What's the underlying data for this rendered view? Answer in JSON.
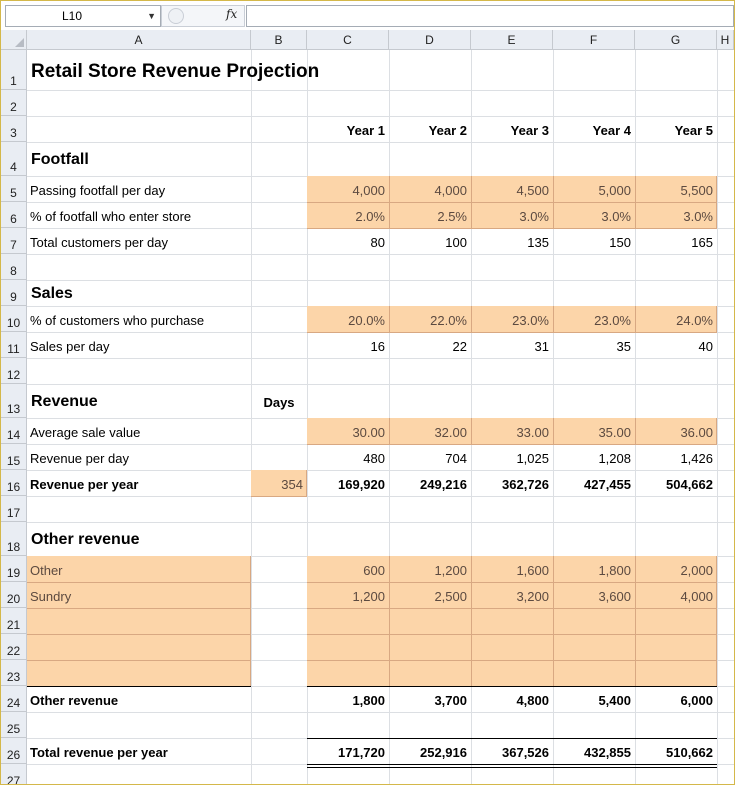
{
  "formula_bar": {
    "name_box": "L10",
    "fx": "fx",
    "formula": ""
  },
  "columns": [
    "A",
    "B",
    "C",
    "D",
    "E",
    "F",
    "G",
    "H"
  ],
  "row_numbers": [
    "1",
    "2",
    "3",
    "4",
    "5",
    "6",
    "7",
    "8",
    "9",
    "10",
    "11",
    "12",
    "13",
    "14",
    "15",
    "16",
    "17",
    "18",
    "19",
    "20",
    "21",
    "22",
    "23",
    "24",
    "25",
    "26",
    "27"
  ],
  "sheet": {
    "title": "Retail Store Revenue Projection",
    "years": [
      "Year 1",
      "Year 2",
      "Year 3",
      "Year 4",
      "Year 5"
    ],
    "days_label": "Days",
    "footfall": {
      "heading": "Footfall",
      "rows": [
        {
          "label": "Passing footfall per day",
          "values": [
            "4,000",
            "4,000",
            "4,500",
            "5,000",
            "5,500"
          ]
        },
        {
          "label": "% of footfall who enter store",
          "values": [
            "2.0%",
            "2.5%",
            "3.0%",
            "3.0%",
            "3.0%"
          ]
        },
        {
          "label": "Total customers per day",
          "values": [
            "80",
            "100",
            "135",
            "150",
            "165"
          ]
        }
      ]
    },
    "sales": {
      "heading": "Sales",
      "rows": [
        {
          "label": "% of customers who purchase",
          "values": [
            "20.0%",
            "22.0%",
            "23.0%",
            "23.0%",
            "24.0%"
          ]
        },
        {
          "label": "Sales per day",
          "values": [
            "16",
            "22",
            "31",
            "35",
            "40"
          ]
        }
      ]
    },
    "revenue": {
      "heading": "Revenue",
      "rows": [
        {
          "label": "Average sale value",
          "values": [
            "30.00",
            "32.00",
            "33.00",
            "35.00",
            "36.00"
          ]
        },
        {
          "label": "Revenue per day",
          "values": [
            "480",
            "704",
            "1,025",
            "1,208",
            "1,426"
          ]
        },
        {
          "label": "Revenue per year",
          "days": "354",
          "values": [
            "169,920",
            "249,216",
            "362,726",
            "427,455",
            "504,662"
          ]
        }
      ]
    },
    "other": {
      "heading": "Other revenue",
      "rows": [
        {
          "label": "Other",
          "values": [
            "600",
            "1,200",
            "1,600",
            "1,800",
            "2,000"
          ]
        },
        {
          "label": "Sundry",
          "values": [
            "1,200",
            "2,500",
            "3,200",
            "3,600",
            "4,000"
          ]
        }
      ],
      "total": {
        "label": "Other revenue",
        "values": [
          "1,800",
          "3,700",
          "4,800",
          "5,400",
          "6,000"
        ]
      }
    },
    "grand_total": {
      "label": "Total revenue per year",
      "values": [
        "171,720",
        "252,916",
        "367,526",
        "432,855",
        "510,662"
      ]
    }
  },
  "colors": {
    "input_fill": "#fcd5a9",
    "header_fill": "#e9edf3",
    "frame": "#d4b84a"
  }
}
